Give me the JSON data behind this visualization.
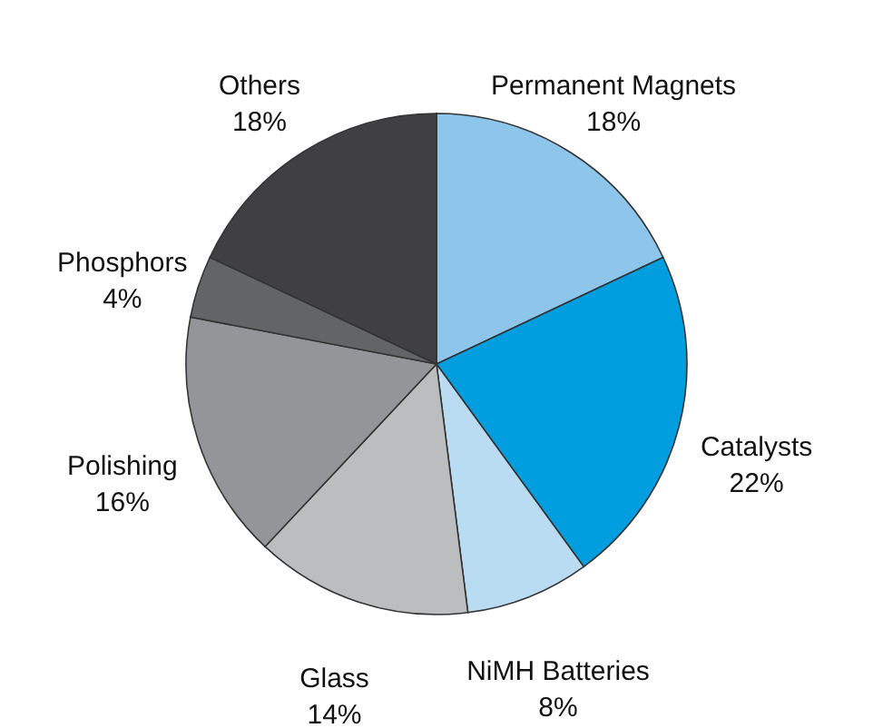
{
  "chart_data": {
    "type": "pie",
    "categories": [
      "Permanent Magnets",
      "Catalysts",
      "NiMH Batteries",
      "Glass",
      "Polishing",
      "Phosphors",
      "Others"
    ],
    "values": [
      18,
      22,
      8,
      14,
      16,
      4,
      18
    ],
    "value_labels": [
      "18%",
      "22%",
      "8%",
      "14%",
      "16%",
      "4%",
      "18%"
    ],
    "colors": [
      "#8ec5eb",
      "#009ddf",
      "#badcf3",
      "#bcbdbf",
      "#939598",
      "#636466",
      "#404042"
    ]
  }
}
